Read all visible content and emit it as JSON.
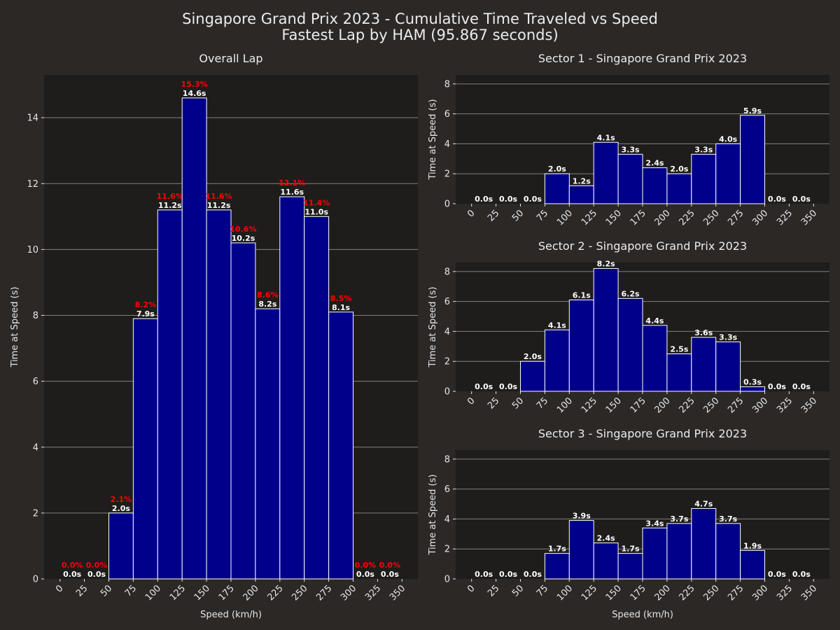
{
  "title_line1": "Singapore Grand Prix 2023 - Cumulative Time Traveled vs Speed",
  "title_line2": "Fastest Lap by HAM (95.867 seconds)",
  "colors": {
    "background": "#2b2826",
    "plot_bg": "#1e1d1c",
    "bar_fill": "#00008b",
    "bar_edge": "#ffffff",
    "percent_label": "#ff0000",
    "grid": "#808080"
  },
  "chart_data": [
    {
      "type": "bar",
      "title": "Overall Lap",
      "xlabel": "Speed (km/h)",
      "ylabel": "Time at Speed (s)",
      "x_ticks": [
        "0",
        "25",
        "50",
        "75",
        "100",
        "125",
        "150",
        "175",
        "200",
        "225",
        "250",
        "275",
        "300",
        "325",
        "350"
      ],
      "bin_edges": [
        0,
        25,
        50,
        75,
        100,
        125,
        150,
        175,
        200,
        225,
        250,
        275,
        300,
        325,
        350
      ],
      "values": [
        0,
        0,
        2.0,
        7.9,
        11.2,
        14.6,
        11.2,
        10.2,
        8.2,
        11.6,
        11.0,
        8.1,
        0,
        0
      ],
      "value_labels": [
        "0.0s",
        "0.0s",
        "2.0s",
        "7.9s",
        "11.2s",
        "14.6s",
        "11.2s",
        "10.2s",
        "8.2s",
        "11.6s",
        "11.0s",
        "8.1s",
        "0.0s",
        "0.0s"
      ],
      "percent_labels": [
        "0.0%",
        "0.0%",
        "2.1%",
        "8.2%",
        "11.6%",
        "15.3%",
        "11.6%",
        "10.6%",
        "8.6%",
        "12.1%",
        "11.4%",
        "8.5%",
        "0.0%",
        "0.0%"
      ],
      "y_ticks": [
        "0",
        "2",
        "4",
        "6",
        "8",
        "10",
        "12",
        "14"
      ],
      "ylim": [
        0,
        15.3
      ],
      "grid": true
    },
    {
      "type": "bar",
      "title": "Sector 1 - Singapore Grand Prix 2023",
      "xlabel": "",
      "ylabel": "Time at Speed (s)",
      "x_ticks": [
        "0",
        "25",
        "50",
        "75",
        "100",
        "125",
        "150",
        "175",
        "200",
        "225",
        "250",
        "275",
        "300",
        "325",
        "350"
      ],
      "bin_edges": [
        0,
        25,
        50,
        75,
        100,
        125,
        150,
        175,
        200,
        225,
        250,
        275,
        300,
        325,
        350
      ],
      "values": [
        0,
        0,
        0,
        2.0,
        1.2,
        4.1,
        3.3,
        2.4,
        2.0,
        3.3,
        4.0,
        5.9,
        0,
        0
      ],
      "value_labels": [
        "0.0s",
        "0.0s",
        "0.0s",
        "2.0s",
        "1.2s",
        "4.1s",
        "3.3s",
        "2.4s",
        "2.0s",
        "3.3s",
        "4.0s",
        "5.9s",
        "0.0s",
        "0.0s"
      ],
      "y_ticks": [
        "0",
        "2",
        "4",
        "6",
        "8"
      ],
      "ylim": [
        0,
        8.6
      ],
      "grid": true
    },
    {
      "type": "bar",
      "title": "Sector 2 - Singapore Grand Prix 2023",
      "xlabel": "",
      "ylabel": "Time at Speed (s)",
      "x_ticks": [
        "0",
        "25",
        "50",
        "75",
        "100",
        "125",
        "150",
        "175",
        "200",
        "225",
        "250",
        "275",
        "300",
        "325",
        "350"
      ],
      "bin_edges": [
        0,
        25,
        50,
        75,
        100,
        125,
        150,
        175,
        200,
        225,
        250,
        275,
        300,
        325,
        350
      ],
      "values": [
        0,
        0,
        2.0,
        4.1,
        6.1,
        8.2,
        6.2,
        4.4,
        2.5,
        3.6,
        3.3,
        0.3,
        0,
        0
      ],
      "value_labels": [
        "0.0s",
        "0.0s",
        "2.0s",
        "4.1s",
        "6.1s",
        "8.2s",
        "6.2s",
        "4.4s",
        "2.5s",
        "3.6s",
        "3.3s",
        "0.3s",
        "0.0s",
        "0.0s"
      ],
      "y_ticks": [
        "0",
        "2",
        "4",
        "6",
        "8"
      ],
      "ylim": [
        0,
        8.6
      ],
      "grid": true
    },
    {
      "type": "bar",
      "title": "Sector 3 - Singapore Grand Prix 2023",
      "xlabel": "Speed (km/h)",
      "ylabel": "Time at Speed (s)",
      "x_ticks": [
        "0",
        "25",
        "50",
        "75",
        "100",
        "125",
        "150",
        "175",
        "200",
        "225",
        "250",
        "275",
        "300",
        "325",
        "350"
      ],
      "bin_edges": [
        0,
        25,
        50,
        75,
        100,
        125,
        150,
        175,
        200,
        225,
        250,
        275,
        300,
        325,
        350
      ],
      "values": [
        0,
        0,
        0,
        1.7,
        3.9,
        2.4,
        1.7,
        3.4,
        3.7,
        4.7,
        3.7,
        1.9,
        0,
        0
      ],
      "value_labels": [
        "0.0s",
        "0.0s",
        "0.0s",
        "1.7s",
        "3.9s",
        "2.4s",
        "1.7s",
        "3.4s",
        "3.7s",
        "4.7s",
        "3.7s",
        "1.9s",
        "0.0s",
        "0.0s"
      ],
      "y_ticks": [
        "0",
        "2",
        "4",
        "6",
        "8"
      ],
      "ylim": [
        0,
        8.6
      ],
      "grid": true
    }
  ]
}
